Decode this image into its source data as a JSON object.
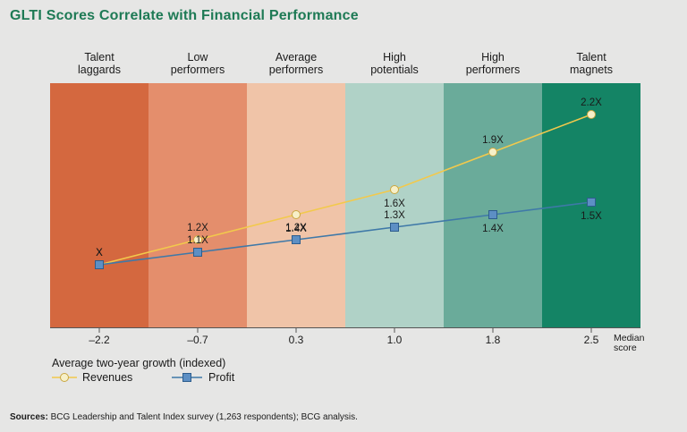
{
  "title": "GLTI Scores Correlate with Financial Performance",
  "source": {
    "label": "Sources:",
    "text": "BCG Leadership and Talent Index survey (1,263 respondents); BCG analysis."
  },
  "chart_data": {
    "type": "line",
    "title": "GLTI Scores Correlate with Financial Performance",
    "categories": [
      [
        "Talent",
        "laggards"
      ],
      [
        "Low",
        "performers"
      ],
      [
        "Average",
        "performers"
      ],
      [
        "High",
        "potentials"
      ],
      [
        "High",
        "performers"
      ],
      [
        "Talent",
        "magnets"
      ]
    ],
    "band_colors": [
      "#d4683f",
      "#e48e6c",
      "#f0c4a8",
      "#b0d2c7",
      "#6aab9a",
      "#148465"
    ],
    "x_ticks": [
      "–2.2",
      "–0.7",
      "0.3",
      "1.0",
      "1.8",
      "2.5"
    ],
    "x_axis_label": [
      "Median",
      "score"
    ],
    "y_axis_label": "Average two-year growth (indexed)",
    "ylim": [
      0.5,
      2.45
    ],
    "series": [
      {
        "name": "Revenues",
        "color": "#f2c94c",
        "marker": "circle",
        "values": [
          1.0,
          1.2,
          1.4,
          1.6,
          1.9,
          2.2
        ],
        "labels": [
          "X",
          "1.2X",
          "1.4X",
          "1.6X",
          "1.9X",
          "2.2X"
        ],
        "label_pos": [
          "above",
          "above",
          "below",
          "below",
          "above",
          "above"
        ]
      },
      {
        "name": "Profit",
        "color": "#3f79a8",
        "marker": "square",
        "values": [
          1.0,
          1.1,
          1.2,
          1.3,
          1.4,
          1.5
        ],
        "labels": [
          "X",
          "1.1X",
          "1.2X",
          "1.3X",
          "1.4X",
          "1.5X"
        ],
        "label_pos": [
          "above",
          "above",
          "above",
          "above",
          "below",
          "below"
        ]
      }
    ],
    "legend": [
      "Revenues",
      "Profit"
    ]
  }
}
